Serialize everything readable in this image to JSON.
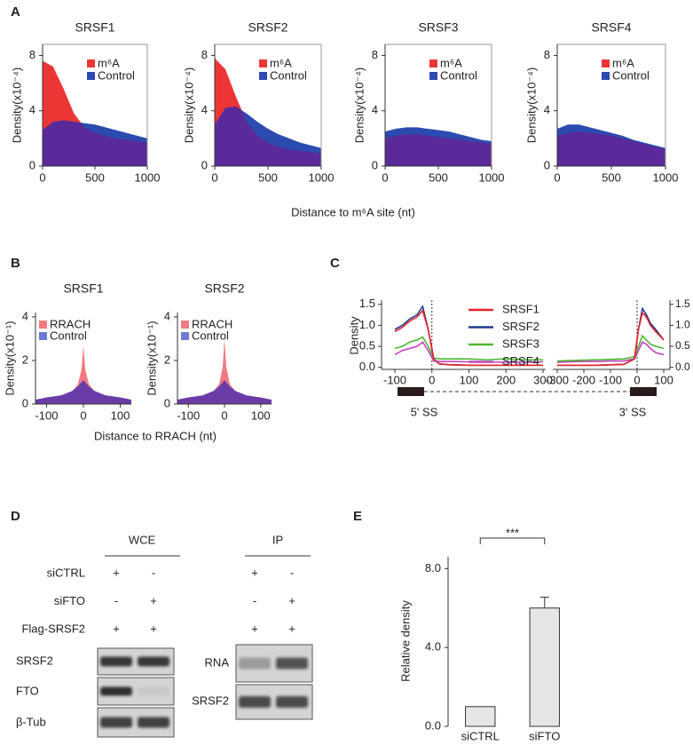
{
  "panel_letters": [
    "A",
    "B",
    "C",
    "D",
    "E"
  ],
  "panel_a_xlabel": "Distance to m⁶A site (nt)",
  "panel_b_xlabel": "Distance to RRACH (nt)",
  "chart_data": [
    {
      "type": "area",
      "title": "SRSF1",
      "ylabel": "Density(x10⁻⁴)",
      "x": [
        0,
        100,
        200,
        300,
        400,
        500,
        600,
        700,
        800,
        900,
        1000
      ],
      "xlim": [
        0,
        1000
      ],
      "xticks": [
        0,
        500,
        1000
      ],
      "ylim": [
        0,
        8.8
      ],
      "yticks": [
        0,
        4,
        8
      ],
      "frame": true,
      "overlap_color": "#5a2a9a",
      "series": [
        {
          "name": "m⁶A",
          "color": "#ee3535",
          "values": [
            7.6,
            7.2,
            5.6,
            3.8,
            2.8,
            2.4,
            2.2,
            2.0,
            1.9,
            1.8,
            1.7
          ]
        },
        {
          "name": "Control",
          "color": "#2c4bb0",
          "values": [
            2.6,
            3.2,
            3.3,
            3.2,
            3.1,
            3.0,
            2.8,
            2.6,
            2.4,
            2.2,
            2.0
          ]
        }
      ]
    },
    {
      "type": "area",
      "title": "SRSF2",
      "ylabel": "Density(x10⁻⁴)",
      "x": [
        0,
        100,
        200,
        300,
        400,
        500,
        600,
        700,
        800,
        900,
        1000
      ],
      "xlim": [
        0,
        1000
      ],
      "xticks": [
        0,
        500,
        1000
      ],
      "ylim": [
        0,
        8.8
      ],
      "yticks": [
        0,
        4,
        8
      ],
      "frame": true,
      "overlap_color": "#5a2a9a",
      "series": [
        {
          "name": "m⁶A",
          "color": "#ee3535",
          "values": [
            7.8,
            7.0,
            5.0,
            3.2,
            2.2,
            1.7,
            1.4,
            1.2,
            1.1,
            1.0,
            0.9
          ]
        },
        {
          "name": "Control",
          "color": "#2c4bb0",
          "values": [
            3.0,
            4.2,
            4.3,
            3.8,
            3.2,
            2.7,
            2.3,
            2.0,
            1.7,
            1.5,
            1.3
          ]
        }
      ]
    },
    {
      "type": "area",
      "title": "SRSF3",
      "ylabel": "Density(x10⁻⁴)",
      "x": [
        0,
        100,
        200,
        300,
        400,
        500,
        600,
        700,
        800,
        900,
        1000
      ],
      "xlim": [
        0,
        1000
      ],
      "xticks": [
        0,
        500,
        1000
      ],
      "ylim": [
        0,
        8.8
      ],
      "yticks": [
        0,
        4,
        8
      ],
      "frame": true,
      "overlap_color": "#5a2a9a",
      "series": [
        {
          "name": "m⁶A",
          "color": "#ee3535",
          "values": [
            2.0,
            2.2,
            2.3,
            2.3,
            2.2,
            2.1,
            2.0,
            1.9,
            1.8,
            1.7,
            1.6
          ]
        },
        {
          "name": "Control",
          "color": "#2c4bb0",
          "values": [
            2.5,
            2.7,
            2.8,
            2.8,
            2.7,
            2.6,
            2.5,
            2.3,
            2.1,
            1.9,
            1.8
          ]
        }
      ]
    },
    {
      "type": "area",
      "title": "SRSF4",
      "ylabel": "Density(x10⁻⁴)",
      "x": [
        0,
        100,
        200,
        300,
        400,
        500,
        600,
        700,
        800,
        900,
        1000
      ],
      "xlim": [
        0,
        1000
      ],
      "xticks": [
        0,
        500,
        1000
      ],
      "ylim": [
        0,
        8.8
      ],
      "yticks": [
        0,
        4,
        8
      ],
      "frame": true,
      "overlap_color": "#5a2a9a",
      "series": [
        {
          "name": "m⁶A",
          "color": "#ee3535",
          "values": [
            2.2,
            2.4,
            2.5,
            2.4,
            2.3,
            2.2,
            2.0,
            1.8,
            1.6,
            1.4,
            1.2
          ]
        },
        {
          "name": "Control",
          "color": "#2c4bb0",
          "values": [
            2.7,
            3.0,
            3.0,
            2.8,
            2.6,
            2.4,
            2.2,
            1.9,
            1.7,
            1.5,
            1.3
          ]
        }
      ]
    },
    {
      "type": "area",
      "title": "SRSF1",
      "ylabel": "Density(x10⁻¹)",
      "x": [
        -130,
        -100,
        -60,
        -30,
        -15,
        -5,
        0,
        5,
        15,
        30,
        60,
        100,
        130
      ],
      "xlim": [
        -130,
        130
      ],
      "xticks": [
        -100,
        0,
        100
      ],
      "ylim": [
        0,
        4.2
      ],
      "yticks": [
        0,
        2,
        4
      ],
      "frame": false,
      "overlap_color": "#6a3ca8",
      "series": [
        {
          "name": "RRACH",
          "color": "#f07a80",
          "values": [
            0.2,
            0.3,
            0.4,
            0.6,
            0.9,
            1.6,
            2.7,
            1.6,
            0.9,
            0.6,
            0.4,
            0.3,
            0.2
          ]
        },
        {
          "name": "Control",
          "color": "#6c7ad4",
          "values": [
            0.2,
            0.3,
            0.4,
            0.6,
            0.8,
            1.0,
            1.1,
            1.0,
            0.8,
            0.6,
            0.4,
            0.3,
            0.2
          ]
        }
      ]
    },
    {
      "type": "area",
      "title": "SRSF2",
      "ylabel": "Density(x10⁻¹)",
      "x": [
        -130,
        -100,
        -60,
        -30,
        -15,
        -5,
        0,
        5,
        15,
        30,
        60,
        100,
        130
      ],
      "xlim": [
        -130,
        130
      ],
      "xticks": [
        -100,
        0,
        100
      ],
      "ylim": [
        0,
        4.2
      ],
      "yticks": [
        0,
        2,
        4
      ],
      "frame": false,
      "overlap_color": "#6a3ca8",
      "series": [
        {
          "name": "RRACH",
          "color": "#f07a80",
          "values": [
            0.2,
            0.3,
            0.4,
            0.6,
            0.9,
            1.7,
            3.0,
            1.7,
            0.9,
            0.6,
            0.4,
            0.3,
            0.2
          ]
        },
        {
          "name": "Control",
          "color": "#6c7ad4",
          "values": [
            0.2,
            0.3,
            0.4,
            0.6,
            0.8,
            1.0,
            1.1,
            1.0,
            0.8,
            0.6,
            0.4,
            0.3,
            0.2
          ]
        }
      ]
    },
    {
      "type": "split-line",
      "ylabel": "Density",
      "label_5ss": "5' SS",
      "label_3ss": "3' SS",
      "x_5ss": [
        -100,
        -80,
        -60,
        -40,
        -25,
        -10,
        5,
        20,
        50,
        100,
        150,
        200,
        250,
        300
      ],
      "xlim_5ss": [
        -100,
        300
      ],
      "xticks_5ss": [
        -100,
        0,
        100,
        200,
        300
      ],
      "x_3ss": [
        -300,
        -250,
        -200,
        -150,
        -100,
        -50,
        -10,
        5,
        20,
        35,
        50,
        70,
        100
      ],
      "xlim_3ss": [
        -300,
        100
      ],
      "xticks_3ss": [
        -300,
        -200,
        -100,
        0,
        100
      ],
      "ylim": [
        -0.05,
        1.6
      ],
      "yticks": [
        {
          "value": 0,
          "label": "0.0"
        },
        0.5,
        {
          "value": 1,
          "label": "1.0"
        },
        1.5
      ],
      "y2lim": [
        -0.05,
        1.6
      ],
      "y2ticks": [
        {
          "value": 0,
          "label": "0.0"
        },
        0.5,
        {
          "value": 1,
          "label": "1.0"
        },
        1.5
      ],
      "series": [
        {
          "name": "SRSF1",
          "color": "#e8242a",
          "values_5ss": [
            0.85,
            0.95,
            1.1,
            1.2,
            1.35,
            0.9,
            0.2,
            0.08,
            0.06,
            0.05,
            0.05,
            0.05,
            0.05,
            0.05
          ],
          "values_3ss": [
            0.05,
            0.05,
            0.05,
            0.05,
            0.06,
            0.07,
            0.2,
            0.9,
            1.3,
            1.2,
            1.0,
            0.85,
            0.65
          ]
        },
        {
          "name": "SRSF2",
          "color": "#1f3c8c",
          "values_5ss": [
            0.9,
            1.0,
            1.15,
            1.25,
            1.45,
            0.9,
            0.2,
            0.08,
            0.06,
            0.05,
            0.05,
            0.05,
            0.05,
            0.05
          ],
          "values_3ss": [
            0.05,
            0.05,
            0.05,
            0.05,
            0.06,
            0.07,
            0.2,
            0.9,
            1.4,
            1.25,
            1.05,
            0.9,
            0.65
          ]
        },
        {
          "name": "SRSF3",
          "color": "#4db830",
          "values_5ss": [
            0.45,
            0.5,
            0.6,
            0.65,
            0.72,
            0.5,
            0.22,
            0.2,
            0.2,
            0.2,
            0.18,
            0.2,
            0.18,
            0.18
          ],
          "values_3ss": [
            0.15,
            0.16,
            0.17,
            0.18,
            0.19,
            0.2,
            0.25,
            0.5,
            0.75,
            0.65,
            0.55,
            0.5,
            0.45
          ]
        },
        {
          "name": "SRSF4",
          "color": "#c040c0",
          "values_5ss": [
            0.3,
            0.4,
            0.45,
            0.5,
            0.6,
            0.4,
            0.15,
            0.14,
            0.14,
            0.13,
            0.13,
            0.12,
            0.12,
            0.13
          ],
          "values_3ss": [
            0.12,
            0.13,
            0.14,
            0.14,
            0.15,
            0.15,
            0.2,
            0.4,
            0.6,
            0.55,
            0.45,
            0.35,
            0.3
          ]
        }
      ]
    },
    {
      "type": "bar",
      "ylabel": "Relative density",
      "categories": [
        "siCTRL",
        "siFTO"
      ],
      "values": [
        1.0,
        6.0
      ],
      "errors": [
        null,
        0.55
      ],
      "color": "#e6e6e6",
      "ylim": [
        0,
        8.6
      ],
      "yticks": [
        {
          "value": 0,
          "label": "0.0"
        },
        {
          "value": 4,
          "label": "4.0"
        },
        {
          "value": 8,
          "label": "8.0"
        }
      ],
      "annotation": "***"
    }
  ],
  "blot": {
    "wce_header": "WCE",
    "ip_header": "IP",
    "conditions": [
      {
        "label": "siCTRL",
        "wce": [
          "+",
          "-"
        ],
        "ip": [
          "+",
          "-"
        ]
      },
      {
        "label": "siFTO",
        "wce": [
          "-",
          "+"
        ],
        "ip": [
          "-",
          "+"
        ]
      },
      {
        "label": "Flag-SRSF2",
        "wce": [
          "+",
          "+"
        ],
        "ip": [
          "+",
          "+"
        ]
      }
    ],
    "wce_bands": [
      "SRSF2",
      "FTO",
      "β-Tub"
    ],
    "ip_bands": [
      "RNA",
      "SRSF2"
    ]
  }
}
